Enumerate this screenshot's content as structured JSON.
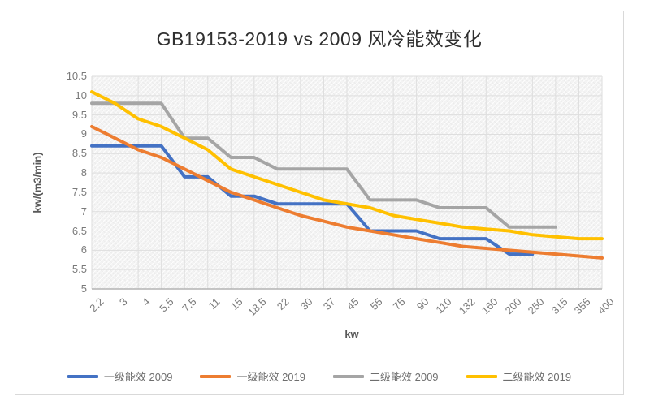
{
  "chart_data": {
    "type": "line",
    "title": "GB19153-2019 vs 2009 风冷能效变化",
    "xlabel": "kw",
    "ylabel": "kw/(m3/min)",
    "categories": [
      "2.2",
      "3",
      "4",
      "5.5",
      "7.5",
      "11",
      "15",
      "18.5",
      "22",
      "30",
      "37",
      "45",
      "55",
      "75",
      "90",
      "110",
      "132",
      "160",
      "200",
      "250",
      "315",
      "355",
      "400"
    ],
    "y_ticks": [
      "10.5",
      "10",
      "9.5",
      "9",
      "8.5",
      "8",
      "7.5",
      "7",
      "6.5",
      "6",
      "5.5",
      "5"
    ],
    "ylim": [
      5,
      10.5
    ],
    "grid": true,
    "legend_position": "bottom",
    "plot_background": "hatched-light-gray",
    "gridline_color": "#dedede",
    "axis_line_color": "#b3b3b3",
    "series": [
      {
        "name": "一级能效 2009",
        "color": "#4472C4",
        "values": [
          8.7,
          8.7,
          8.7,
          8.7,
          7.9,
          7.9,
          7.4,
          7.4,
          7.2,
          7.2,
          7.2,
          7.2,
          6.5,
          6.5,
          6.5,
          6.3,
          6.3,
          6.3,
          5.9,
          5.9,
          null,
          null,
          null
        ]
      },
      {
        "name": "一级能效 2019",
        "color": "#ED7D31",
        "values": [
          9.2,
          8.9,
          8.6,
          8.4,
          8.1,
          7.8,
          7.5,
          7.3,
          7.1,
          6.9,
          6.75,
          6.6,
          6.5,
          6.4,
          6.3,
          6.2,
          6.1,
          6.05,
          6.0,
          5.95,
          5.9,
          5.85,
          5.8
        ]
      },
      {
        "name": "二级能效 2009",
        "color": "#A5A5A5",
        "values": [
          9.8,
          9.8,
          9.8,
          9.8,
          8.9,
          8.9,
          8.4,
          8.4,
          8.1,
          8.1,
          8.1,
          8.1,
          7.3,
          7.3,
          7.3,
          7.1,
          7.1,
          7.1,
          6.6,
          6.6,
          6.6,
          null,
          null
        ]
      },
      {
        "name": "二级能效 2019",
        "color": "#FFC000",
        "values": [
          10.1,
          9.8,
          9.4,
          9.2,
          8.9,
          8.6,
          8.1,
          7.9,
          7.7,
          7.5,
          7.3,
          7.2,
          7.1,
          6.9,
          6.8,
          6.7,
          6.6,
          6.55,
          6.5,
          6.4,
          6.35,
          6.3,
          6.3
        ]
      }
    ]
  }
}
